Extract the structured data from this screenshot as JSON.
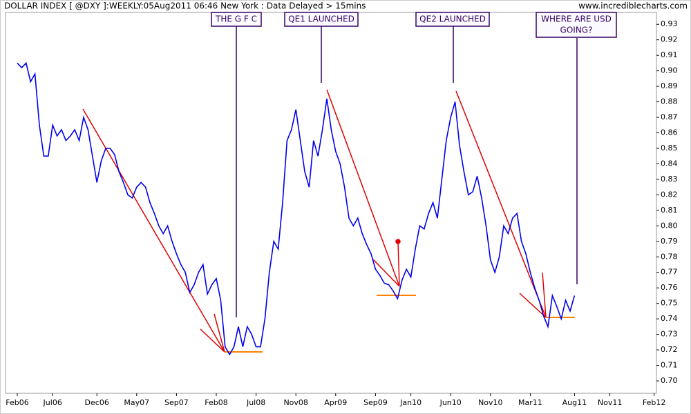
{
  "chart_data": {
    "type": "line",
    "title": "DOLLAR INDEX [ @DXY ]:WEEKLY:05Aug2011 06:46 New York  : Data Delayed > 15mins",
    "watermark": "www.incrediblecharts.com",
    "annotations": [
      "THE G F C",
      "QE1 LAUNCHED",
      "QE2 LAUNCHED",
      [
        "WHERE ARE USD",
        "GOING?"
      ]
    ],
    "categories": [
      "Feb06",
      null,
      null,
      null,
      null,
      null,
      null,
      null,
      "Jul06",
      null,
      null,
      null,
      null,
      null,
      null,
      null,
      null,
      null,
      "Dec06",
      null,
      null,
      null,
      null,
      null,
      null,
      null,
      null,
      "May07",
      null,
      null,
      null,
      null,
      null,
      null,
      null,
      null,
      "Sep07",
      null,
      null,
      null,
      null,
      null,
      null,
      null,
      null,
      "Feb08",
      null,
      null,
      null,
      null,
      null,
      null,
      null,
      null,
      "Jul08",
      null,
      null,
      null,
      null,
      null,
      null,
      null,
      null,
      "Nov08",
      null,
      null,
      null,
      null,
      null,
      null,
      null,
      null,
      "Apr09",
      null,
      null,
      null,
      null,
      null,
      null,
      null,
      null,
      "Sep09",
      null,
      null,
      null,
      null,
      null,
      null,
      null,
      "Jan10",
      null,
      null,
      null,
      null,
      null,
      null,
      null,
      null,
      "Jun10",
      null,
      null,
      null,
      null,
      null,
      null,
      null,
      null,
      "Nov10",
      null,
      null,
      null,
      null,
      null,
      null,
      null,
      null,
      "Mar11",
      null,
      null,
      null,
      null,
      null,
      null,
      null,
      null,
      null,
      "Aug11",
      null,
      null,
      null,
      null,
      null,
      null,
      null,
      "Nov11",
      null,
      null,
      null,
      null,
      null,
      null,
      null,
      null,
      null,
      "Feb12"
    ],
    "series": [
      {
        "name": "DXY",
        "color": "#0000ee",
        "values": [
          0.905,
          0.902,
          0.905,
          0.893,
          0.898,
          0.865,
          0.845,
          0.845,
          0.865,
          0.858,
          0.862,
          0.855,
          0.858,
          0.862,
          0.855,
          0.87,
          0.862,
          0.845,
          0.828,
          0.842,
          0.85,
          0.85,
          0.846,
          0.835,
          0.828,
          0.82,
          0.818,
          0.825,
          0.828,
          0.825,
          0.815,
          0.808,
          0.8,
          0.795,
          0.8,
          0.79,
          0.782,
          0.775,
          0.77,
          0.757,
          0.762,
          0.77,
          0.775,
          0.756,
          0.762,
          0.766,
          0.752,
          0.722,
          0.717,
          0.722,
          0.735,
          0.722,
          0.735,
          0.73,
          0.722,
          0.722,
          0.74,
          0.77,
          0.79,
          0.785,
          0.815,
          0.855,
          0.862,
          0.875,
          0.855,
          0.835,
          0.825,
          0.855,
          0.845,
          0.862,
          0.882,
          0.862,
          0.848,
          0.84,
          0.825,
          0.805,
          0.8,
          0.805,
          0.795,
          0.788,
          0.782,
          0.772,
          0.768,
          0.763,
          0.762,
          0.758,
          0.753,
          0.765,
          0.772,
          0.767,
          0.785,
          0.8,
          0.798,
          0.808,
          0.815,
          0.805,
          0.83,
          0.855,
          0.87,
          0.88,
          0.852,
          0.835,
          0.82,
          0.822,
          0.832,
          0.818,
          0.8,
          0.778,
          0.77,
          0.78,
          0.8,
          0.795,
          0.805,
          0.808,
          0.79,
          0.782,
          0.77,
          0.76,
          0.752,
          0.742,
          0.735,
          0.755,
          0.748,
          0.74,
          0.752,
          0.745,
          0.755,
          null,
          null,
          null,
          null,
          null,
          null,
          null,
          null,
          null,
          null,
          null,
          null,
          null,
          null,
          null,
          null,
          null,
          null
        ]
      }
    ],
    "ylim": [
      0.692,
      0.939
    ],
    "yticks": [
      {
        "value": 0.7,
        "label": "0.70"
      },
      0.71,
      0.72,
      0.73,
      0.74,
      0.75,
      0.76,
      0.77,
      0.78,
      0.79,
      {
        "value": 0.8,
        "label": "0.80"
      },
      0.81,
      0.82,
      0.83,
      0.84,
      0.85,
      0.86,
      0.87,
      0.88,
      0.89,
      {
        "value": 0.9,
        "label": "0.90"
      },
      0.91,
      0.92,
      0.93
    ]
  }
}
